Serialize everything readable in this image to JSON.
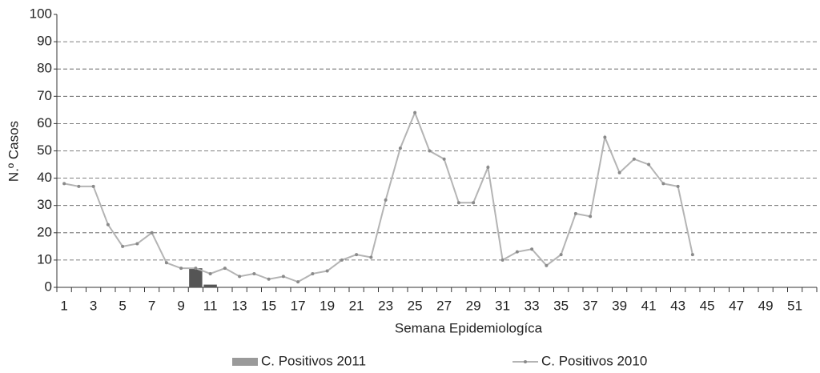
{
  "chart_data": {
    "type": "bar-line",
    "x_label": "Semana Epidemiologíca",
    "y_label": "N.º Casos",
    "categories": [
      1,
      null,
      3,
      null,
      5,
      null,
      7,
      null,
      9,
      null,
      11,
      null,
      13,
      null,
      15,
      null,
      17,
      null,
      19,
      null,
      21,
      null,
      23,
      null,
      25,
      null,
      27,
      null,
      29,
      null,
      31,
      null,
      33,
      null,
      35,
      null,
      37,
      null,
      39,
      null,
      41,
      null,
      43,
      null,
      45,
      null,
      47,
      null,
      49,
      null,
      51,
      null
    ],
    "series": [
      {
        "name": "C. Positivos  2011",
        "type": "bar",
        "color": "#555555",
        "legend_color": "#9a9a9a",
        "values": [
          null,
          null,
          null,
          null,
          null,
          null,
          null,
          null,
          null,
          7,
          1,
          null,
          null,
          null,
          null,
          null,
          null,
          null,
          null,
          null,
          null,
          null,
          null,
          null,
          null,
          null,
          null,
          null,
          null,
          null,
          null,
          null,
          null,
          null,
          null,
          null,
          null,
          null,
          null,
          null,
          null,
          null,
          null,
          null,
          null,
          null,
          null,
          null,
          null,
          null,
          null,
          null
        ]
      },
      {
        "name": "C. Positivos 2010",
        "type": "line",
        "color": "#b4b4b4",
        "marker_color": "#8a8a8a",
        "values": [
          38,
          37,
          37,
          23,
          15,
          16,
          20,
          9,
          7,
          7,
          5,
          7,
          4,
          5,
          3,
          4,
          2,
          5,
          6,
          10,
          12,
          11,
          32,
          51,
          64,
          50,
          47,
          31,
          31,
          44,
          10,
          13,
          14,
          8,
          12,
          27,
          26,
          55,
          42,
          47,
          45,
          38,
          37,
          12,
          null,
          null,
          null,
          null,
          null,
          null,
          null,
          null
        ]
      }
    ],
    "ylim": [
      0,
      100
    ],
    "yticks": [
      0,
      10,
      20,
      30,
      40,
      50,
      60,
      70,
      80,
      90,
      100
    ],
    "grid": true,
    "legend": "bottom"
  }
}
